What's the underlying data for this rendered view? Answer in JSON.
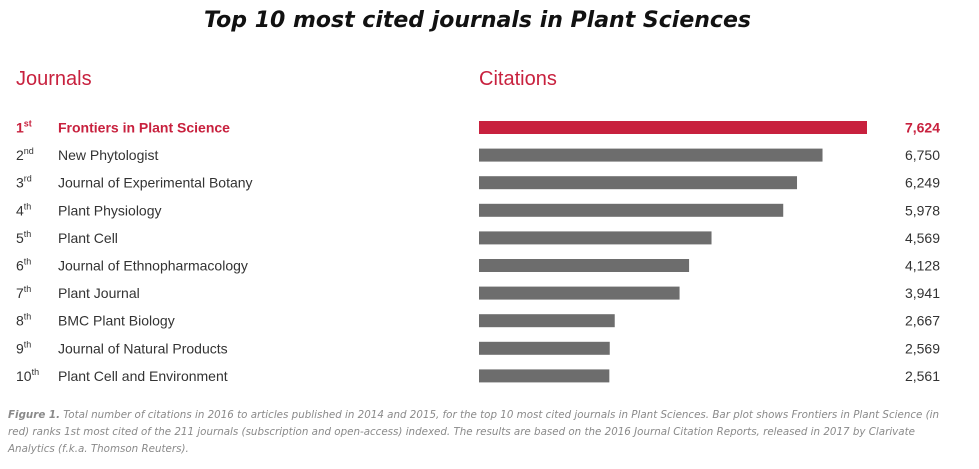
{
  "chart_data": {
    "type": "bar",
    "orientation": "horizontal",
    "title": "Top 10 most cited journals in Plant Sciences",
    "category_header": "Journals",
    "value_header": "Citations",
    "ranks": [
      {
        "num": "1",
        "suffix": "st"
      },
      {
        "num": "2",
        "suffix": "nd"
      },
      {
        "num": "3",
        "suffix": "rd"
      },
      {
        "num": "4",
        "suffix": "th"
      },
      {
        "num": "5",
        "suffix": "th"
      },
      {
        "num": "6",
        "suffix": "th"
      },
      {
        "num": "7",
        "suffix": "th"
      },
      {
        "num": "8",
        "suffix": "th"
      },
      {
        "num": "9",
        "suffix": "th"
      },
      {
        "num": "10",
        "suffix": "th"
      }
    ],
    "categories": [
      "Frontiers in Plant Science",
      "New Phytologist",
      "Journal of Experimental Botany",
      "Plant Physiology",
      "Plant Cell",
      "Journal of Ethnopharmacology",
      "Plant Journal",
      "BMC Plant Biology",
      "Journal of Natural Products",
      "Plant Cell and Environment"
    ],
    "values": [
      7624,
      6750,
      6249,
      5978,
      4569,
      4128,
      3941,
      2667,
      2569,
      2561
    ],
    "value_labels": [
      "7,624",
      "6,750",
      "6,249",
      "5,978",
      "4,569",
      "4,128",
      "3,941",
      "2,667",
      "2,569",
      "2,561"
    ],
    "highlight_index": 0,
    "xlim": [
      0,
      7624
    ],
    "grid": false,
    "legend": "none",
    "colors": {
      "highlight": "#c8213e",
      "bar": "#6d6d6d",
      "text": "#333333"
    }
  },
  "caption": {
    "label": "Figure 1.",
    "text": "Total number of citations in 2016 to articles published in 2014 and 2015, for the top 10 most cited journals in Plant Sciences. Bar plot shows Frontiers in Plant Science (in red) ranks 1st most cited of the 211 journals (subscription and open-access) indexed. The results are based on the 2016 Journal Citation Reports, released in 2017 by Clarivate Analytics (f.k.a. Thomson Reuters)."
  }
}
